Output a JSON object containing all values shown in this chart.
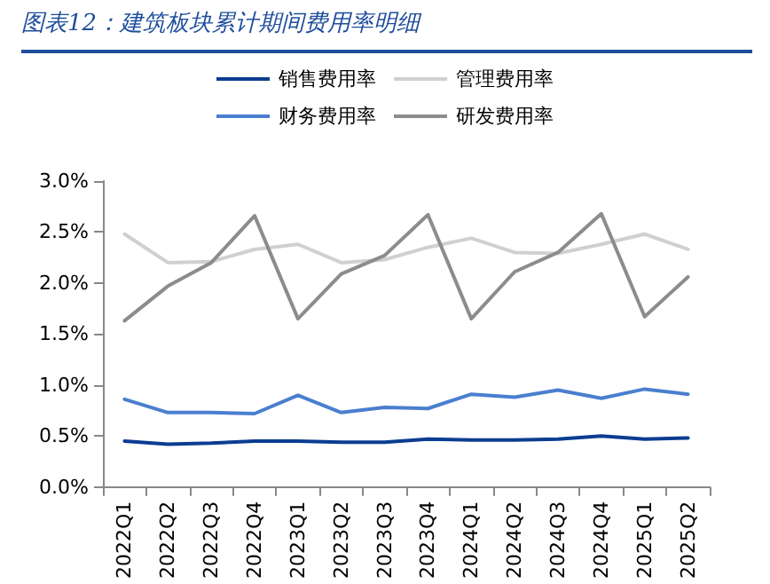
{
  "chart_data": {
    "type": "line",
    "title": "图表12：建筑板块累计期间费用率明细",
    "categories": [
      "2022Q1",
      "2022Q2",
      "2022Q3",
      "2022Q4",
      "2023Q1",
      "2023Q2",
      "2023Q3",
      "2023Q4",
      "2024Q1",
      "2024Q2",
      "2024Q3",
      "2024Q4",
      "2025Q1",
      "2025Q2"
    ],
    "series": [
      {
        "name": "销售费用率",
        "color": "#0b3d91",
        "values": [
          0.45,
          0.42,
          0.43,
          0.45,
          0.45,
          0.44,
          0.44,
          0.47,
          0.46,
          0.46,
          0.47,
          0.5,
          0.47,
          0.48
        ]
      },
      {
        "name": "管理费用率",
        "color": "#d0d0d0",
        "values": [
          2.48,
          2.2,
          2.21,
          2.33,
          2.38,
          2.2,
          2.23,
          2.35,
          2.44,
          2.3,
          2.29,
          2.38,
          2.48,
          2.33
        ]
      },
      {
        "name": "财务费用率",
        "color": "#4a7fcf",
        "values": [
          0.86,
          0.73,
          0.73,
          0.72,
          0.9,
          0.73,
          0.78,
          0.77,
          0.91,
          0.88,
          0.95,
          0.87,
          0.96,
          0.91
        ]
      },
      {
        "name": "研发费用率",
        "color": "#8c8c8c",
        "values": [
          1.63,
          1.97,
          2.2,
          2.66,
          1.65,
          2.09,
          2.27,
          2.67,
          1.65,
          2.11,
          2.3,
          2.68,
          1.67,
          2.06
        ]
      }
    ],
    "ylim": [
      0,
      3.0
    ],
    "yticks": [
      {
        "value": 0,
        "label": "0.0%"
      },
      {
        "value": 0.5,
        "label": "0.5%"
      },
      {
        "value": 1.0,
        "label": "1.0%"
      },
      {
        "value": 1.5,
        "label": "1.5%"
      },
      {
        "value": 2.0,
        "label": "2.0%"
      },
      {
        "value": 2.5,
        "label": "2.5%"
      },
      {
        "value": 3.0,
        "label": "3.0%"
      }
    ],
    "grid": false,
    "legend": "top",
    "marker": "none",
    "line_style": "solid"
  }
}
